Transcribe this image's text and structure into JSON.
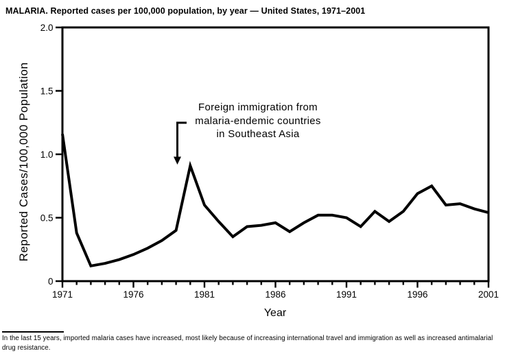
{
  "page": {
    "background_color": "#ffffff",
    "foreground_color": "#000000"
  },
  "chart_data": {
    "type": "line",
    "title": "MALARIA. Reported cases per 100,000 population, by year — United States, 1971–2001",
    "xlabel": "Year",
    "ylabel": "Reported Cases/100,000 Population",
    "x": [
      1971,
      1972,
      1973,
      1974,
      1975,
      1976,
      1977,
      1978,
      1979,
      1980,
      1981,
      1982,
      1983,
      1984,
      1985,
      1986,
      1987,
      1988,
      1989,
      1990,
      1991,
      1992,
      1993,
      1994,
      1995,
      1996,
      1997,
      1998,
      1999,
      2000,
      2001
    ],
    "values": [
      1.16,
      0.38,
      0.12,
      0.14,
      0.17,
      0.21,
      0.26,
      0.32,
      0.4,
      0.91,
      0.6,
      0.47,
      0.35,
      0.43,
      0.44,
      0.46,
      0.39,
      0.46,
      0.52,
      0.52,
      0.5,
      0.43,
      0.55,
      0.47,
      0.55,
      0.69,
      0.75,
      0.6,
      0.61,
      0.57,
      0.54
    ],
    "xlim": [
      1971,
      2001
    ],
    "ylim": [
      0,
      2.0
    ],
    "y_ticks": [
      0,
      0.5,
      1.0,
      1.5,
      2.0
    ],
    "y_tick_labels": [
      "0",
      "0.5",
      "1.0",
      "1.5",
      "2.0"
    ],
    "x_major_ticks": [
      1971,
      1976,
      1981,
      1986,
      1991,
      1996,
      2001
    ],
    "x_minor_tick_every_years": 1,
    "grid": false,
    "legend": null,
    "line_color": "#000000",
    "annotation": {
      "lines": [
        "Foreign immigration from",
        "malaria-endemic countries",
        "in Southeast Asia"
      ],
      "arrow_points_to_year": 1979
    }
  },
  "footnote": {
    "lines": [
      "In the last 15 years, imported malaria cases have increased, most likely because of increasing international travel and immigration as well as increased antimalarial",
      "drug resistance."
    ]
  }
}
